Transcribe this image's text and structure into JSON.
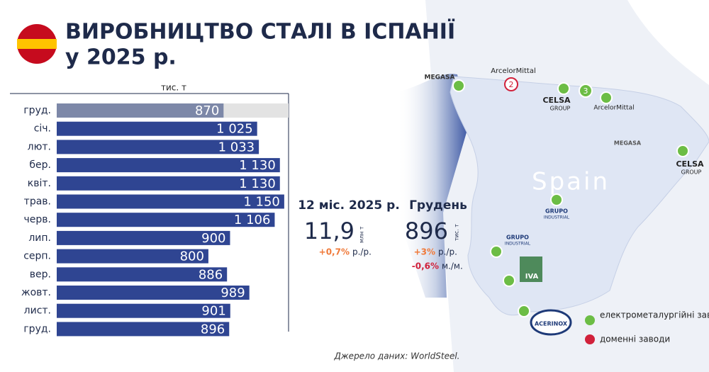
{
  "header": {
    "title_line1": "ВИРОБНИЦТВО СТАЛІ В ІСПАНІЇ",
    "title_line2": "у 2025 р."
  },
  "chart_data": {
    "type": "bar",
    "orientation": "horizontal",
    "axis_label": "тис. т",
    "categories": [
      "груд.",
      "січ.",
      "лют.",
      "бер.",
      "квіт.",
      "трав.",
      "черв.",
      "лип.",
      "серп.",
      "вер.",
      "жовт.",
      "лист.",
      "груд."
    ],
    "values": [
      870,
      1025,
      1033,
      1130,
      1130,
      1150,
      1106,
      900,
      800,
      886,
      989,
      901,
      896
    ],
    "value_labels": [
      "870",
      "1 025",
      "1 033",
      "1 130",
      "1 130",
      "1 150",
      "1 106",
      "900",
      "800",
      "886",
      "989",
      "901",
      "896"
    ],
    "colors": [
      "#7d88a8",
      "#2f4592",
      "#2f4592",
      "#2f4592",
      "#2f4592",
      "#2f4592",
      "#2f4592",
      "#2f4592",
      "#2f4592",
      "#2f4592",
      "#2f4592",
      "#2f4592",
      "#2f4592"
    ],
    "xlim": [
      100,
      1170
    ]
  },
  "summary": {
    "year": {
      "title": "12 міс. 2025 р.",
      "value": "11,9",
      "unit": "млн т",
      "change": "+0,7%",
      "change_unit": "р./р."
    },
    "month": {
      "title": "Грудень",
      "value": "896",
      "unit": "тис. т",
      "change_yoy": "+3%",
      "change_yoy_unit": "р./р.",
      "change_mom": "-0,6%",
      "change_mom_unit": "м./м."
    }
  },
  "map": {
    "country": "Spain",
    "labels": [
      "MEGASA",
      "ArcelorMittal",
      "CELSA",
      "GROUP",
      "ArcelorMittal",
      "MEGASA",
      "CELSA",
      "GROUP",
      "GRUPO",
      "INDUSTRIAL",
      "GRUPO",
      "INDUSTRIAL",
      "IVA",
      "ACERINOX"
    ],
    "markers": [
      "2",
      "3"
    ]
  },
  "legend": {
    "items": [
      "електрометалургійні заводи",
      "доменні заводи"
    ]
  },
  "source": "Джерело даних: WorldSteel."
}
